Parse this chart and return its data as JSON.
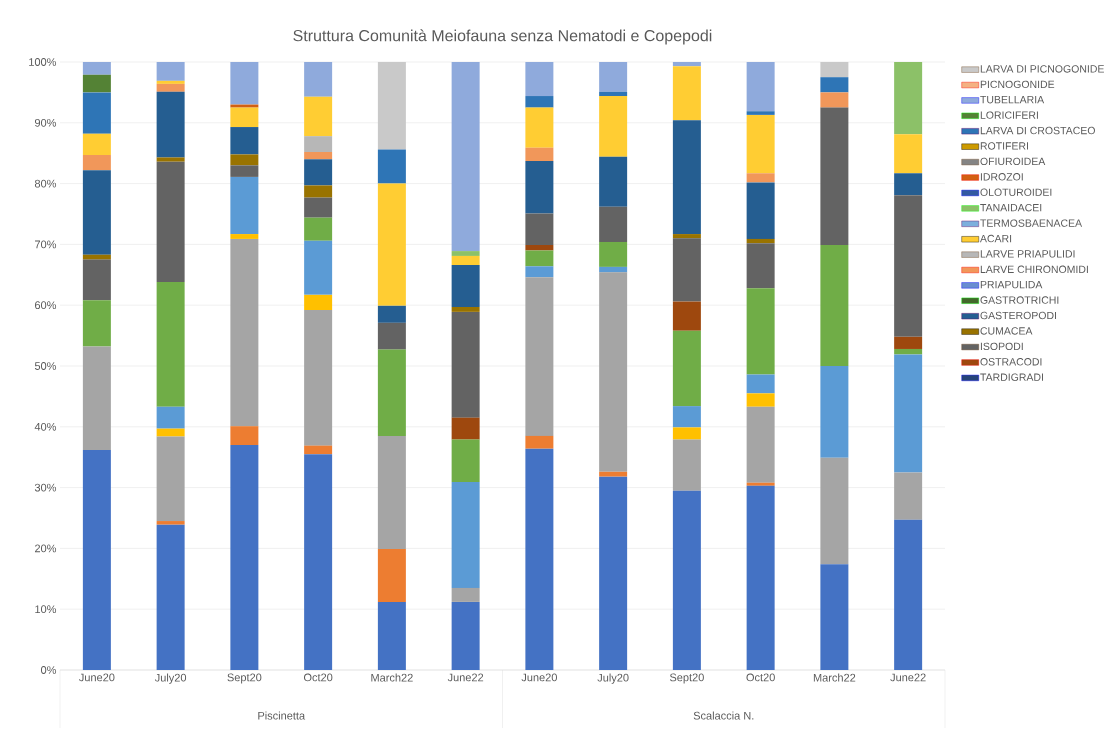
{
  "chart_data": {
    "type": "bar",
    "title": "Struttura Comunità Meiofauna senza Nematodi e Copepodi",
    "categories": [
      "June20",
      "July20",
      "Sept20",
      "Oct20",
      "March22",
      "June22",
      "June20",
      "July20",
      "Sept20",
      "Oct20",
      "March22",
      "June22"
    ],
    "annotations": [
      "Piscinetta",
      "Scalaccia N."
    ],
    "stacked": true,
    "grid": "y",
    "legend": "right",
    "ylim": [
      0,
      100
    ],
    "yticks": [
      {
        "value": 0,
        "label": "0%"
      },
      {
        "value": 10,
        "label": "10%"
      },
      {
        "value": 20,
        "label": "20%"
      },
      {
        "value": 30,
        "label": "30%"
      },
      {
        "value": 40,
        "label": "40%"
      },
      {
        "value": 50,
        "label": "50%"
      },
      {
        "value": 60,
        "label": "60%"
      },
      {
        "value": 70,
        "label": "70%"
      },
      {
        "value": 80,
        "label": "80%"
      },
      {
        "value": 90,
        "label": "90%"
      },
      {
        "value": 100,
        "label": "100%"
      }
    ],
    "series": [
      {
        "color": "#4472c4",
        "values": [
          36.2,
          23.9,
          37.0,
          35.5,
          11.2,
          11.2,
          36.4,
          31.8,
          29.5,
          30.3,
          17.4,
          24.7
        ]
      },
      {
        "color": "#ed7d31",
        "values": [
          0,
          0.6,
          3.1,
          1.4,
          8.7,
          0,
          2.1,
          0.8,
          0,
          0.5,
          0,
          0
        ]
      },
      {
        "color": "#a5a5a5",
        "values": [
          17.0,
          13.9,
          30.8,
          22.3,
          18.6,
          2.3,
          26.1,
          32.8,
          8.4,
          12.5,
          17.5,
          7.8
        ]
      },
      {
        "color": "#ffc000",
        "values": [
          0,
          1.3,
          0.8,
          2.5,
          0,
          0,
          0,
          0,
          2.0,
          2.2,
          0,
          0
        ]
      },
      {
        "color": "#5b9bd5",
        "values": [
          0,
          3.6,
          9.4,
          8.9,
          0,
          17.4,
          1.8,
          0.9,
          3.5,
          3.1,
          15.1,
          19.4
        ]
      },
      {
        "color": "#70ad47",
        "values": [
          7.6,
          20.5,
          0,
          3.8,
          14.2,
          7.0,
          2.6,
          4.1,
          12.4,
          14.2,
          19.9,
          0.9
        ]
      },
      {
        "name": "TARDIGRADI",
        "color": "#264478",
        "values": [
          0,
          0,
          0,
          0,
          0,
          0,
          0,
          0,
          0,
          0,
          0,
          0
        ]
      },
      {
        "name": "OSTRACODI",
        "color": "#9e480e",
        "values": [
          0,
          0,
          0,
          0,
          0,
          3.6,
          0.9,
          0,
          4.8,
          0,
          0,
          2.0
        ]
      },
      {
        "name": "ISOPODI",
        "color": "#636363",
        "values": [
          6.7,
          19.8,
          1.9,
          3.3,
          4.4,
          17.4,
          5.2,
          5.8,
          10.4,
          7.4,
          22.6,
          23.3
        ]
      },
      {
        "name": "CUMACEA",
        "color": "#997300",
        "values": [
          0.8,
          0.7,
          1.8,
          2.0,
          0,
          0.8,
          0,
          0,
          0.7,
          0.7,
          0,
          0
        ]
      },
      {
        "name": "GASTEROPODI",
        "color": "#255e91",
        "values": [
          13.9,
          10.8,
          4.5,
          4.3,
          2.8,
          6.9,
          8.6,
          8.2,
          18.7,
          9.3,
          0,
          3.6
        ]
      },
      {
        "name": "GASTROTRICHI",
        "color": "#43682b",
        "values": [
          0,
          0,
          0,
          0,
          0,
          0,
          0,
          0,
          0,
          0,
          0,
          0
        ]
      },
      {
        "name": "PRIAPULIDA",
        "color": "#698ed0",
        "values": [
          0,
          0,
          0,
          0,
          0,
          0,
          0,
          0,
          0,
          0,
          0,
          0
        ]
      },
      {
        "name": "LARVE CHIRONOMIDI",
        "color": "#f1975a",
        "values": [
          2.5,
          1.3,
          0,
          1.2,
          0,
          0,
          2.2,
          0,
          0,
          1.5,
          2.5,
          0
        ]
      },
      {
        "name": "LARVE PRIAPULIDI",
        "color": "#b7b7b7",
        "values": [
          0,
          0,
          0,
          2.6,
          0,
          0,
          0,
          0,
          0,
          0,
          0,
          0
        ]
      },
      {
        "name": "ACARI",
        "color": "#ffcd33",
        "values": [
          3.5,
          0.5,
          3.2,
          6.5,
          20.1,
          1.5,
          6.6,
          10.0,
          8.9,
          9.6,
          0,
          6.4
        ]
      },
      {
        "name": "TERMOSBAENACEA",
        "color": "#7cafdd",
        "values": [
          0,
          0,
          0,
          0,
          0,
          0,
          0,
          0,
          0,
          0,
          0,
          0
        ]
      },
      {
        "name": "TANAIDACEI",
        "color": "#8cc168",
        "values": [
          0,
          0,
          0,
          0,
          0,
          0.8,
          0,
          0,
          0,
          0,
          0,
          11.9
        ]
      },
      {
        "name": "OLOTUROIDEI",
        "color": "#335aa1",
        "values": [
          0,
          0,
          0,
          0,
          0,
          0,
          0,
          0,
          0,
          0,
          0,
          0
        ]
      },
      {
        "name": "IDROZOI",
        "color": "#d26012",
        "values": [
          0,
          0,
          0.5,
          0,
          0,
          0,
          0,
          0,
          0,
          0,
          0,
          0
        ]
      },
      {
        "name": "OFIUROIDEA",
        "color": "#848484",
        "values": [
          0,
          0,
          0,
          0,
          0,
          0,
          0,
          0,
          0,
          0,
          0,
          0
        ]
      },
      {
        "name": "ROTIFERI",
        "color": "#cc9a00",
        "values": [
          0,
          0,
          0,
          0,
          0,
          0,
          0,
          0,
          0,
          0,
          0,
          0
        ]
      },
      {
        "name": "LARVA DI CROSTACEO",
        "color": "#2e75b6",
        "values": [
          6.8,
          0,
          0,
          0,
          5.6,
          0,
          1.9,
          0.7,
          0,
          0.6,
          2.5,
          0
        ]
      },
      {
        "name": "LORICIFERI",
        "color": "#548235",
        "values": [
          2.9,
          0,
          0,
          0,
          0,
          0,
          0,
          0,
          0,
          0,
          0,
          0
        ]
      },
      {
        "name": "TUBELLARIA",
        "color": "#8faadc",
        "values": [
          2.1,
          3.1,
          7.0,
          5.7,
          0,
          31.1,
          5.6,
          4.9,
          0.7,
          8.1,
          0,
          0
        ]
      },
      {
        "name": "PICNOGONIDE",
        "color": "#f4b183",
        "values": [
          0,
          0,
          0,
          0,
          0,
          0,
          0,
          0,
          0,
          0,
          0,
          0
        ]
      },
      {
        "name": "LARVA DI PICNOGONIDE",
        "color": "#c9c9c9",
        "values": [
          0,
          0,
          0,
          0,
          14.4,
          0,
          0,
          0,
          0,
          0,
          2.5,
          0
        ]
      }
    ]
  }
}
